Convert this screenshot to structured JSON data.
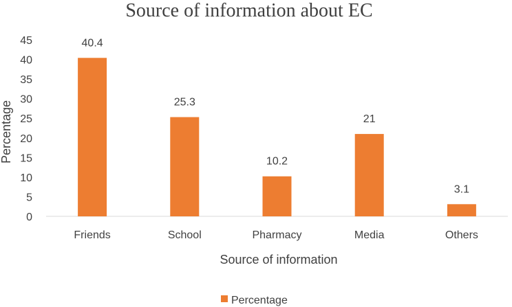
{
  "chart_data": {
    "type": "bar",
    "title": "Source of information about EC",
    "xlabel": "Source of information",
    "ylabel": "Percentage",
    "categories": [
      "Friends",
      "School",
      "Pharmacy",
      "Media",
      "Others"
    ],
    "series": [
      {
        "name": "Percentage",
        "values": [
          40.4,
          25.3,
          10.2,
          21,
          3.1
        ]
      }
    ],
    "data_labels": [
      "40.4",
      "25.3",
      "10.2",
      "21",
      "3.1"
    ],
    "ylim": [
      0,
      45
    ],
    "yticks": [
      0,
      5,
      10,
      15,
      20,
      25,
      30,
      35,
      40,
      45
    ],
    "grid": false,
    "legend": "bottom",
    "bar_color": "#ED7D31"
  }
}
